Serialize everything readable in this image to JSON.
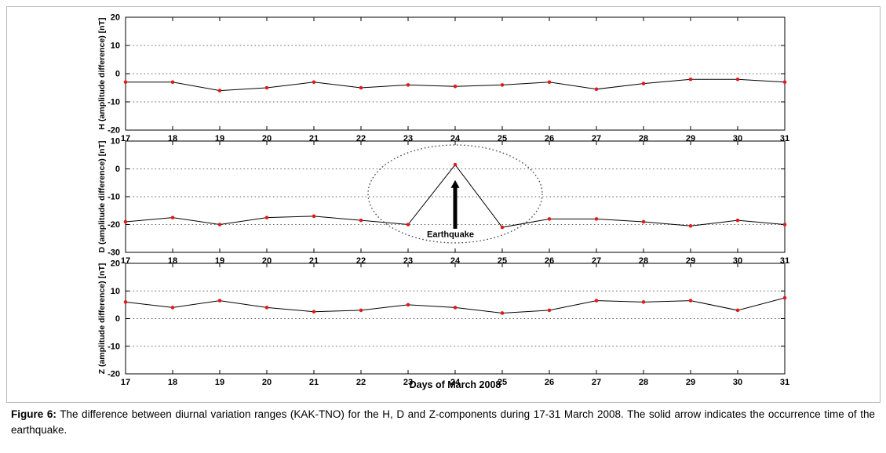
{
  "figure": {
    "caption_label": "Figure 6:",
    "caption_text": " The difference between diurnal variation ranges (KAK-TNO) for the H, D and Z-components during 17-31 March 2008. The solid arrow indicates the occurrence time of the earthquake."
  },
  "chart_data": {
    "type": "line",
    "xlabel": "Days of March 2008",
    "x": [
      17,
      18,
      19,
      20,
      21,
      22,
      23,
      24,
      25,
      26,
      27,
      28,
      29,
      30,
      31
    ],
    "xlim": [
      17,
      31
    ],
    "xticks": [
      17,
      18,
      19,
      20,
      21,
      22,
      23,
      24,
      25,
      26,
      27,
      28,
      29,
      30,
      31
    ],
    "grid": "horizontal dotted",
    "line_color": "#000000",
    "marker_color": "#e01b1b",
    "panels": [
      {
        "name": "H",
        "ylabel": "H (amplitude difference) [nT]",
        "ylim": [
          -20,
          20
        ],
        "yticks": [
          20,
          10,
          0,
          -10,
          -20
        ],
        "values": [
          -3,
          -3,
          -6,
          -5,
          -3,
          -5,
          -4,
          -4.5,
          -4,
          -3,
          -5.5,
          -3.5,
          -2,
          -2,
          -3
        ]
      },
      {
        "name": "D",
        "ylabel": "D (amplitude difference) [nT]",
        "ylim": [
          -30,
          10
        ],
        "yticks": [
          10,
          0,
          -10,
          -20,
          -30
        ],
        "values": [
          -19,
          -17.5,
          -20,
          -17.5,
          -17,
          -18.5,
          -20,
          1.5,
          -21,
          -18,
          -18,
          -19,
          -20.5,
          -18.5,
          -20
        ],
        "annotation": {
          "label": "Earthquake",
          "day": 24,
          "arrow_from_value": -21.5,
          "arrow_to_value": -4,
          "label_day": 23.9,
          "label_value": -24.5,
          "ellipse": {
            "center_day": 24,
            "center_value": -9,
            "rx_days": 1.85,
            "ry_values": 17.6
          }
        }
      },
      {
        "name": "Z",
        "ylabel": "Z (amplitude difference) [nT]",
        "ylim": [
          -20,
          20
        ],
        "yticks": [
          20,
          10,
          0,
          -10,
          -20
        ],
        "values": [
          6,
          4,
          6.5,
          4,
          2.5,
          3,
          5,
          4,
          2,
          3,
          6.5,
          6,
          6.5,
          3,
          7.5
        ]
      }
    ]
  }
}
